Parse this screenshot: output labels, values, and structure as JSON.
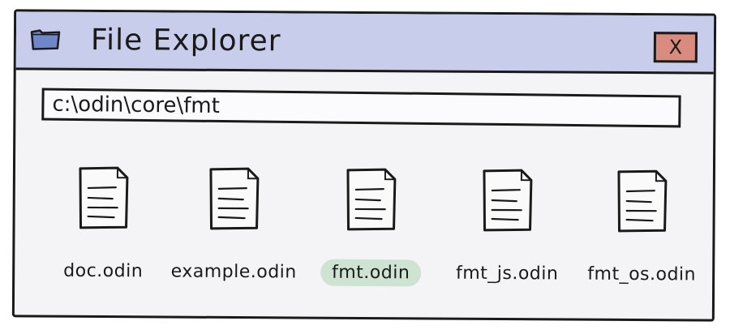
{
  "window": {
    "title": "File Explorer",
    "close_label": "X",
    "title_bar_color": "#c9cdec",
    "close_color": "#d98b80"
  },
  "address_bar": {
    "path": "c:\\odin\\core\\fmt"
  },
  "files": [
    {
      "name": "doc.odin",
      "icon": "document-icon",
      "selected": false
    },
    {
      "name": "example.odin",
      "icon": "document-icon",
      "selected": false
    },
    {
      "name": "fmt.odin",
      "icon": "document-icon",
      "selected": true
    },
    {
      "name": "fmt_js.odin",
      "icon": "document-icon",
      "selected": false
    },
    {
      "name": "fmt_os.odin",
      "icon": "document-icon",
      "selected": false
    }
  ],
  "selection_color": "#cfe3d2"
}
